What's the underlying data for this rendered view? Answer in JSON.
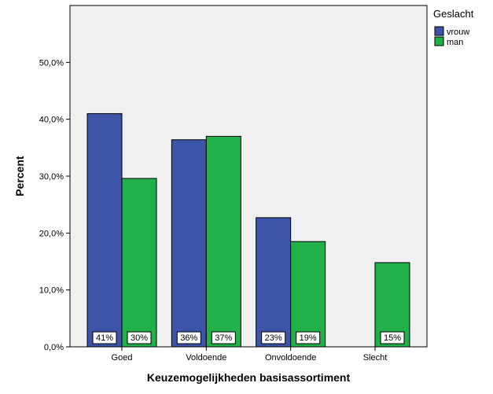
{
  "chart_data": {
    "type": "bar",
    "categories": [
      "Goed",
      "Voldoende",
      "Onvoldoende",
      "Slecht"
    ],
    "series": [
      {
        "name": "vrouw",
        "color": "#3d54a8",
        "values": [
          41.0,
          36.4,
          22.7,
          0
        ],
        "labels": [
          "41%",
          "36%",
          "23%",
          ""
        ]
      },
      {
        "name": "man",
        "color": "#22b04a",
        "values": [
          29.6,
          37.0,
          18.5,
          14.8
        ],
        "labels": [
          "30%",
          "37%",
          "19%",
          "15%"
        ]
      }
    ],
    "xlabel": "Keuzemogelijkheden basisassortiment",
    "ylabel": "Percent",
    "ylim": [
      0,
      60
    ],
    "yticks": [
      0,
      10,
      20,
      30,
      40,
      50
    ],
    "ytick_labels": [
      "0,0%",
      "10,0%",
      "20,0%",
      "30,0%",
      "40,0%",
      "50,0%"
    ],
    "legend": {
      "title": "Geslacht",
      "position": "top-right"
    },
    "grid": false,
    "plot_background": "#f0f0f0",
    "bar_border": "#000000"
  }
}
